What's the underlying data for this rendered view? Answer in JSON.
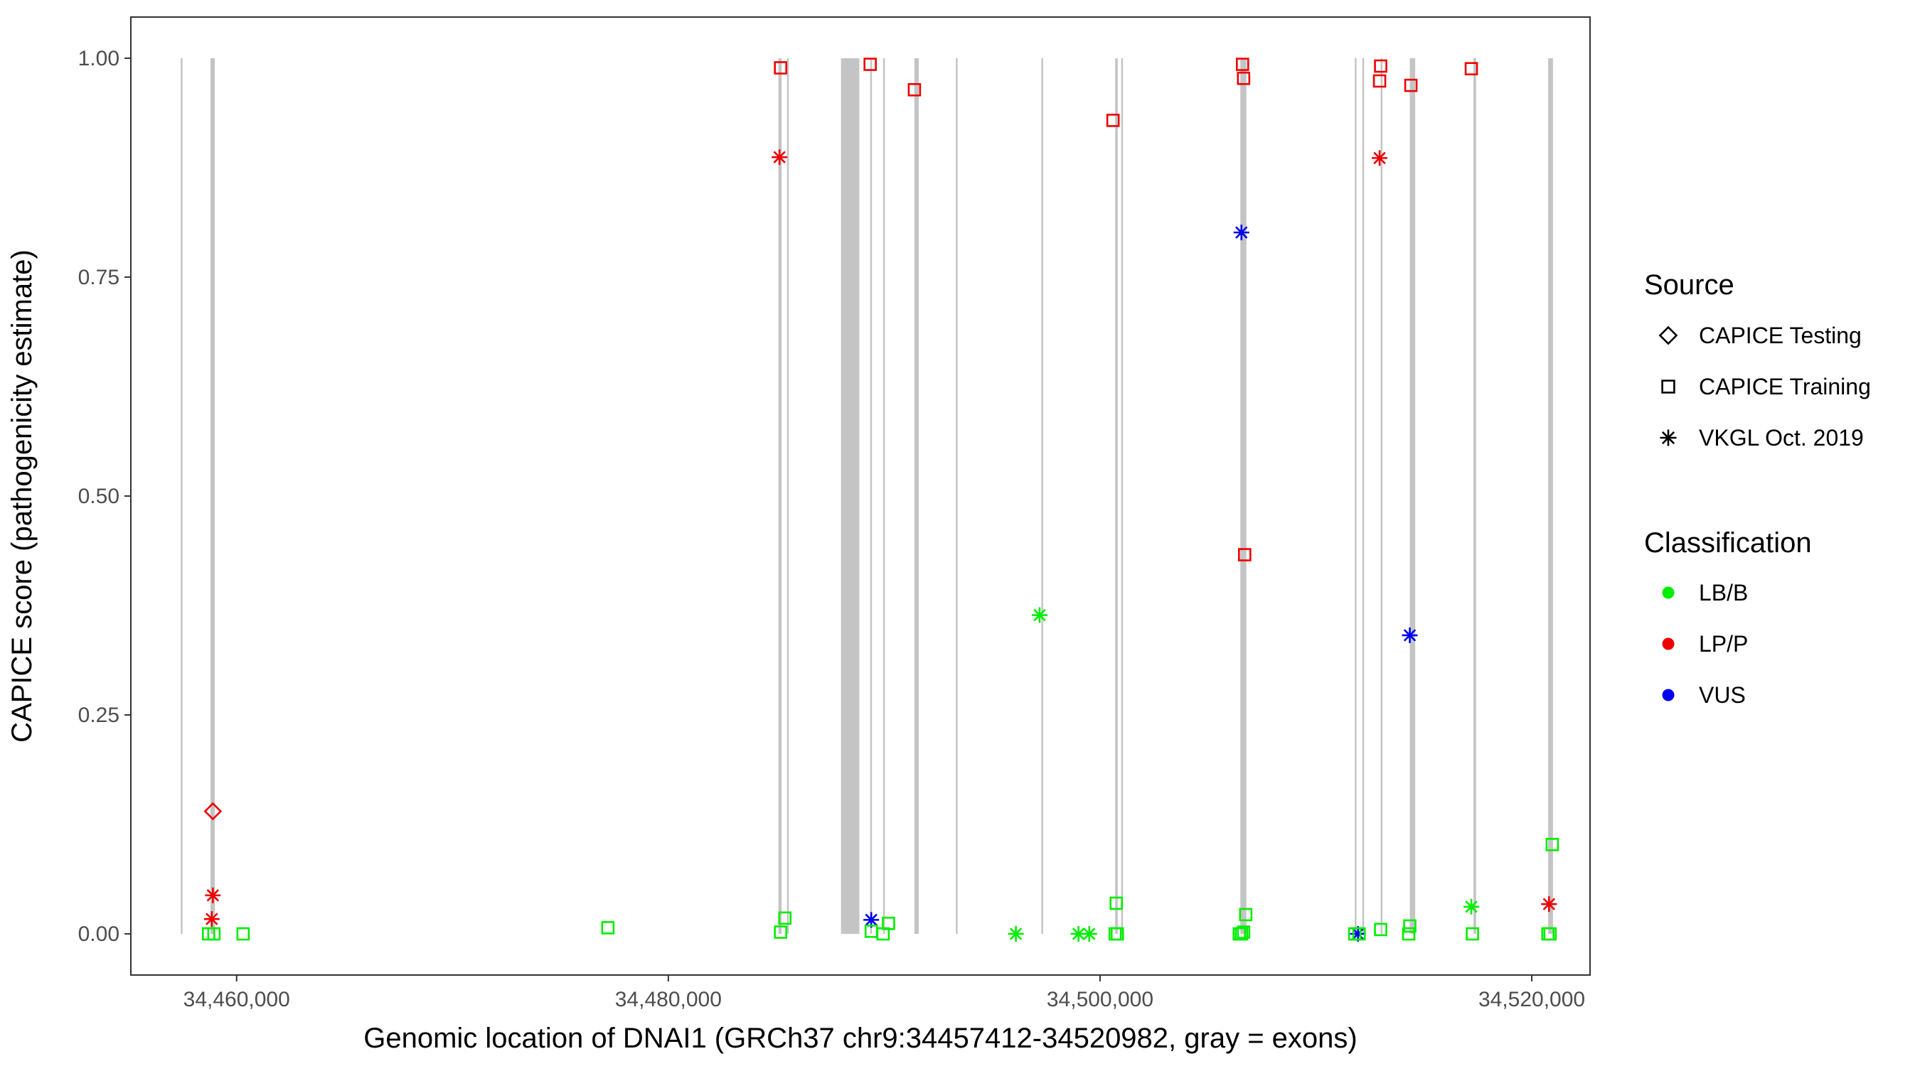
{
  "chart_data": {
    "type": "scatter",
    "title": "",
    "xlabel": "Genomic location of DNAI1 (GRCh37 chr9:34457412-34520982, gray = exons)",
    "ylabel": "CAPICE score (pathogenicity estimate)",
    "xlim": [
      34455100,
      34522700
    ],
    "ylim": [
      -0.047,
      1.047
    ],
    "x_ticks": [
      34460000,
      34480000,
      34500000,
      34520000
    ],
    "x_tick_labels": [
      "34,460,000",
      "34,480,000",
      "34,500,000",
      "34,520,000"
    ],
    "y_ticks": [
      0,
      0.25,
      0.5,
      0.75,
      1
    ],
    "y_tick_labels": [
      "0.00",
      "0.25",
      "0.50",
      "0.75",
      "1.00"
    ],
    "grid": false,
    "exons": [
      [
        34457412,
        34457470
      ],
      [
        34458790,
        34458990
      ],
      [
        34485100,
        34485250
      ],
      [
        34485500,
        34485580
      ],
      [
        34488000,
        34488850
      ],
      [
        34489350,
        34489430
      ],
      [
        34489950,
        34490030
      ],
      [
        34491400,
        34491600
      ],
      [
        34493320,
        34493400
      ],
      [
        34497280,
        34497340
      ],
      [
        34500700,
        34500820
      ],
      [
        34500980,
        34501040
      ],
      [
        34506500,
        34506780
      ],
      [
        34511800,
        34511880
      ],
      [
        34512150,
        34512230
      ],
      [
        34513000,
        34513080
      ],
      [
        34514350,
        34514600
      ],
      [
        34517300,
        34517420
      ],
      [
        34520760,
        34520982
      ]
    ],
    "legend": {
      "position": "right",
      "source_title": "Source",
      "source_items": [
        {
          "label": "CAPICE Testing",
          "shape": "diamond"
        },
        {
          "label": "CAPICE Training",
          "shape": "square"
        },
        {
          "label": "VKGL Oct. 2019",
          "shape": "asterisk"
        }
      ],
      "class_title": "Classification",
      "class_items": [
        {
          "label": "LB/B",
          "color": "#00ee00"
        },
        {
          "label": "LP/P",
          "color": "#ee0000"
        },
        {
          "label": "VUS",
          "color": "#0000ee"
        }
      ]
    },
    "colors": {
      "LB/B": "#00ee00",
      "LP/P": "#ee0000",
      "VUS": "#0000ee",
      "exon": "#c4c4c4"
    },
    "series": [
      {
        "source": "CAPICE Testing",
        "class": "LP/P",
        "points": [
          [
            34458900,
            0.14
          ]
        ]
      },
      {
        "source": "CAPICE Training",
        "class": "LP/P",
        "points": [
          [
            34485200,
            0.989
          ],
          [
            34489350,
            0.993
          ],
          [
            34491400,
            0.964
          ],
          [
            34500600,
            0.929
          ],
          [
            34506600,
            0.993
          ],
          [
            34506650,
            0.977
          ],
          [
            34506700,
            0.433
          ],
          [
            34513000,
            0.991
          ],
          [
            34512950,
            0.974
          ],
          [
            34514400,
            0.969
          ],
          [
            34517200,
            0.988
          ]
        ]
      },
      {
        "source": "VKGL Oct. 2019",
        "class": "LP/P",
        "points": [
          [
            34458900,
            0.044
          ],
          [
            34458850,
            0.017
          ],
          [
            34485150,
            0.887
          ],
          [
            34512950,
            0.886
          ],
          [
            34520800,
            0.034
          ]
        ]
      },
      {
        "source": "VKGL Oct. 2019",
        "class": "VUS",
        "points": [
          [
            34489400,
            0.016
          ],
          [
            34506550,
            0.801
          ],
          [
            34514350,
            0.341
          ],
          [
            34511950,
            0.0
          ]
        ]
      },
      {
        "source": "VKGL Oct. 2019",
        "class": "LB/B",
        "points": [
          [
            34497200,
            0.364
          ],
          [
            34496100,
            0.0
          ],
          [
            34499000,
            0.0
          ],
          [
            34499500,
            0.0
          ],
          [
            34517200,
            0.031
          ]
        ]
      },
      {
        "source": "CAPICE Training",
        "class": "LB/B",
        "points": [
          [
            34458700,
            0.0
          ],
          [
            34458950,
            0.0
          ],
          [
            34460300,
            0.0
          ],
          [
            34477200,
            0.007
          ],
          [
            34485200,
            0.002
          ],
          [
            34485400,
            0.018
          ],
          [
            34489400,
            0.003
          ],
          [
            34489950,
            0.0
          ],
          [
            34490200,
            0.012
          ],
          [
            34500700,
            0.0
          ],
          [
            34500750,
            0.035
          ],
          [
            34500800,
            0.0
          ],
          [
            34506450,
            0.0
          ],
          [
            34506550,
            0.0
          ],
          [
            34506650,
            0.002
          ],
          [
            34506750,
            0.022
          ],
          [
            34511800,
            0.0
          ],
          [
            34512000,
            0.0
          ],
          [
            34513000,
            0.005
          ],
          [
            34514300,
            0.0
          ],
          [
            34514350,
            0.009
          ],
          [
            34517250,
            0.0
          ],
          [
            34520750,
            0.0
          ],
          [
            34520850,
            0.0
          ],
          [
            34520950,
            0.102
          ]
        ]
      }
    ]
  }
}
